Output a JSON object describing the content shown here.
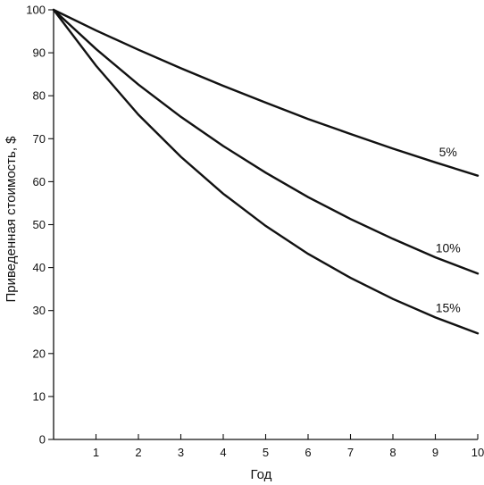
{
  "chart_data": {
    "type": "line",
    "xlabel": "Год",
    "ylabel": "Приведенная стоимость, $",
    "xlim": [
      0,
      10
    ],
    "ylim": [
      0,
      100
    ],
    "x_ticks": [
      "1",
      "2",
      "3",
      "4",
      "5",
      "6",
      "7",
      "8",
      "9",
      "10"
    ],
    "y_ticks": [
      "0",
      "10",
      "20",
      "30",
      "40",
      "50",
      "60",
      "70",
      "80",
      "90",
      "100"
    ],
    "grid": false,
    "x": [
      0,
      1,
      2,
      3,
      4,
      5,
      6,
      7,
      8,
      9,
      10
    ],
    "series": [
      {
        "name": "5%",
        "values": [
          100,
          95.2,
          90.7,
          86.4,
          82.3,
          78.4,
          74.6,
          71.1,
          67.7,
          64.5,
          61.4
        ]
      },
      {
        "name": "10%",
        "values": [
          100,
          90.9,
          82.6,
          75.1,
          68.3,
          62.1,
          56.4,
          51.3,
          46.7,
          42.4,
          38.6
        ]
      },
      {
        "name": "15%",
        "values": [
          100,
          87.0,
          75.6,
          65.8,
          57.2,
          49.7,
          43.2,
          37.6,
          32.7,
          28.4,
          24.7
        ]
      }
    ]
  }
}
